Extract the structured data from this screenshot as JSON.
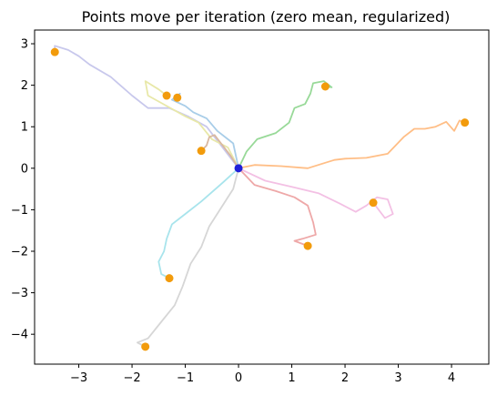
{
  "chart_data": {
    "type": "line",
    "title": "Points move per iteration (zero mean, regularized)",
    "xlabel": "",
    "ylabel": "",
    "xlim": [
      -3.83,
      4.7
    ],
    "ylim": [
      -4.72,
      3.33
    ],
    "xticks": [
      -3,
      -2,
      -1,
      0,
      1,
      2,
      3,
      4
    ],
    "yticks": [
      -4,
      -3,
      -2,
      -1,
      0,
      1,
      2,
      3
    ],
    "grid": false,
    "legend": "none",
    "origin_marker": {
      "x": 0,
      "y": 0,
      "color": "#1f1fd8"
    },
    "endpoint_color": "#f29b0c",
    "series": [
      {
        "color": "#ffbe86",
        "end": [
          4.25,
          1.1
        ],
        "path": [
          [
            0,
            0
          ],
          [
            0.3,
            0.08
          ],
          [
            0.8,
            0.05
          ],
          [
            1.3,
            0.0
          ],
          [
            1.6,
            0.12
          ],
          [
            1.8,
            0.2
          ],
          [
            2.0,
            0.23
          ],
          [
            2.4,
            0.25
          ],
          [
            2.8,
            0.35
          ],
          [
            3.1,
            0.75
          ],
          [
            3.3,
            0.95
          ],
          [
            3.5,
            0.95
          ],
          [
            3.7,
            1.0
          ],
          [
            3.9,
            1.12
          ],
          [
            4.05,
            0.9
          ],
          [
            4.15,
            1.15
          ],
          [
            4.25,
            1.1
          ]
        ]
      },
      {
        "color": "#98d998",
        "end": [
          1.63,
          1.97
        ],
        "path": [
          [
            0,
            0
          ],
          [
            0.15,
            0.4
          ],
          [
            0.35,
            0.7
          ],
          [
            0.7,
            0.85
          ],
          [
            0.95,
            1.1
          ],
          [
            1.05,
            1.45
          ],
          [
            1.25,
            1.55
          ],
          [
            1.35,
            1.8
          ],
          [
            1.4,
            2.05
          ],
          [
            1.6,
            2.1
          ],
          [
            1.75,
            1.95
          ],
          [
            1.63,
            1.97
          ]
        ]
      },
      {
        "color": "#c8c8ec",
        "end": [
          -3.45,
          2.8
        ],
        "path": [
          [
            0,
            0
          ],
          [
            -0.3,
            0.5
          ],
          [
            -0.6,
            1.0
          ],
          [
            -0.95,
            1.25
          ],
          [
            -1.3,
            1.45
          ],
          [
            -1.7,
            1.45
          ],
          [
            -2.0,
            1.75
          ],
          [
            -2.4,
            2.2
          ],
          [
            -2.8,
            2.5
          ],
          [
            -3.0,
            2.7
          ],
          [
            -3.2,
            2.85
          ],
          [
            -3.45,
            2.95
          ],
          [
            -3.45,
            2.8
          ]
        ]
      },
      {
        "color": "#a8cde8",
        "end": [
          -1.15,
          1.7
        ],
        "path": [
          [
            0,
            0
          ],
          [
            -0.1,
            0.6
          ],
          [
            -0.4,
            0.9
          ],
          [
            -0.6,
            1.2
          ],
          [
            -0.85,
            1.35
          ],
          [
            -1.0,
            1.5
          ],
          [
            -1.25,
            1.65
          ],
          [
            -1.1,
            1.8
          ],
          [
            -1.15,
            1.7
          ]
        ]
      },
      {
        "color": "#e8e8a8",
        "end": [
          -1.35,
          1.75
        ],
        "path": [
          [
            0,
            0
          ],
          [
            -0.2,
            0.5
          ],
          [
            -0.5,
            0.7
          ],
          [
            -0.75,
            1.1
          ],
          [
            -1.0,
            1.25
          ],
          [
            -1.35,
            1.5
          ],
          [
            -1.7,
            1.75
          ],
          [
            -1.75,
            2.1
          ],
          [
            -1.5,
            1.9
          ],
          [
            -1.35,
            1.75
          ]
        ]
      },
      {
        "color": "#d9b8a0",
        "end": [
          -0.7,
          0.42
        ],
        "path": [
          [
            0,
            0
          ],
          [
            -0.15,
            0.3
          ],
          [
            -0.3,
            0.55
          ],
          [
            -0.45,
            0.8
          ],
          [
            -0.55,
            0.75
          ],
          [
            -0.6,
            0.55
          ],
          [
            -0.7,
            0.42
          ]
        ]
      },
      {
        "color": "#a8e4ec",
        "end": [
          -1.3,
          -2.65
        ],
        "path": [
          [
            0,
            0
          ],
          [
            -0.3,
            -0.35
          ],
          [
            -0.7,
            -0.8
          ],
          [
            -1.0,
            -1.1
          ],
          [
            -1.25,
            -1.35
          ],
          [
            -1.35,
            -1.7
          ],
          [
            -1.4,
            -2.0
          ],
          [
            -1.5,
            -2.25
          ],
          [
            -1.45,
            -2.55
          ],
          [
            -1.3,
            -2.65
          ]
        ]
      },
      {
        "color": "#d6d6d6",
        "end": [
          -1.75,
          -4.3
        ],
        "path": [
          [
            0,
            0
          ],
          [
            -0.1,
            -0.5
          ],
          [
            -0.35,
            -1.0
          ],
          [
            -0.55,
            -1.4
          ],
          [
            -0.7,
            -1.9
          ],
          [
            -0.9,
            -2.3
          ],
          [
            -1.05,
            -2.85
          ],
          [
            -1.2,
            -3.3
          ],
          [
            -1.45,
            -3.7
          ],
          [
            -1.7,
            -4.1
          ],
          [
            -1.9,
            -4.2
          ],
          [
            -1.75,
            -4.3
          ]
        ]
      },
      {
        "color": "#eea8a8",
        "end": [
          1.3,
          -1.87
        ],
        "path": [
          [
            0,
            0
          ],
          [
            0.3,
            -0.4
          ],
          [
            0.7,
            -0.55
          ],
          [
            1.05,
            -0.7
          ],
          [
            1.3,
            -0.9
          ],
          [
            1.4,
            -1.3
          ],
          [
            1.45,
            -1.6
          ],
          [
            1.2,
            -1.7
          ],
          [
            1.05,
            -1.75
          ],
          [
            1.3,
            -1.87
          ]
        ]
      },
      {
        "color": "#f3c0e4",
        "end": [
          2.53,
          -0.83
        ],
        "path": [
          [
            0,
            0
          ],
          [
            0.5,
            -0.3
          ],
          [
            1.0,
            -0.45
          ],
          [
            1.5,
            -0.6
          ],
          [
            1.9,
            -0.85
          ],
          [
            2.2,
            -1.05
          ],
          [
            2.4,
            -0.9
          ],
          [
            2.6,
            -0.7
          ],
          [
            2.8,
            -0.75
          ],
          [
            2.9,
            -1.1
          ],
          [
            2.75,
            -1.2
          ],
          [
            2.53,
            -0.83
          ]
        ]
      }
    ]
  }
}
